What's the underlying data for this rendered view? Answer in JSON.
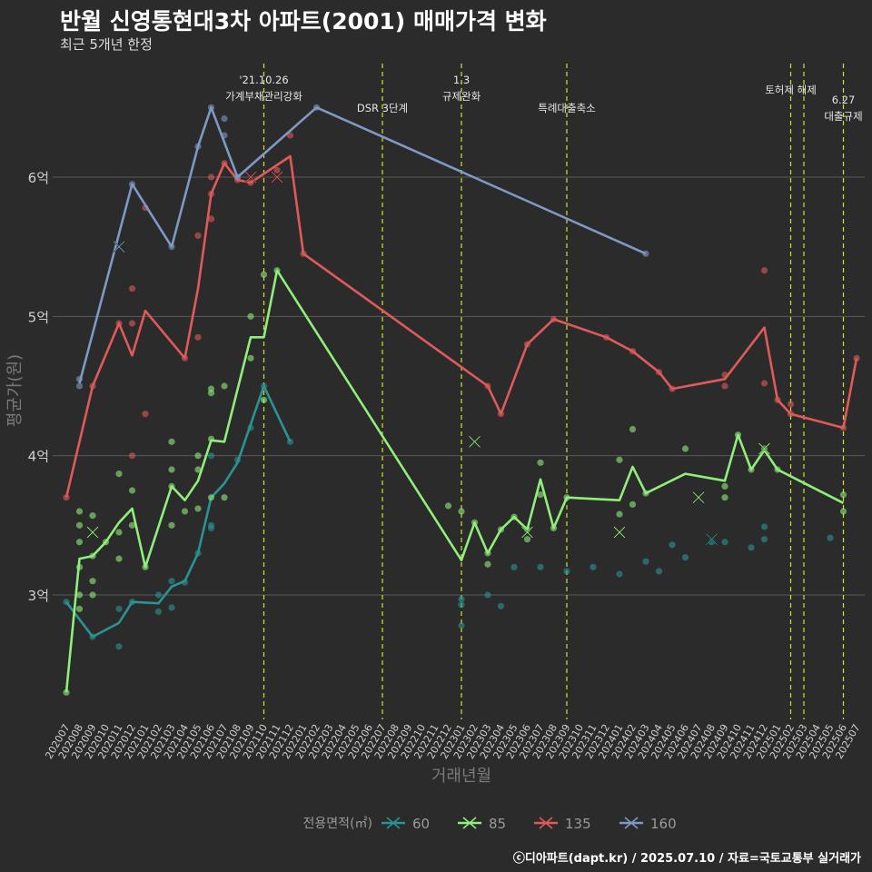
{
  "chart_data": {
    "type": "line",
    "title": "반월 신영통현대3차 아파트(2001) 매매가격 변화",
    "subtitle": "최근 5개년 한정",
    "xlabel": "거래년월",
    "ylabel": "평균가(원)",
    "legend_title": "전용면적(㎡)",
    "legend_position": "bottom",
    "caption": "ⓒ디아파트(dapt.kr) / 2025.07.10 / 자료=국토교통부 실거래가",
    "ylim": [
      2.1,
      7.0
    ],
    "yticks": [
      3,
      4,
      5,
      6
    ],
    "ytick_labels": [
      "3억",
      "4억",
      "5억",
      "6억"
    ],
    "grid": true,
    "categories": [
      "202007",
      "202008",
      "202009",
      "202010",
      "202011",
      "202012",
      "202101",
      "202102",
      "202103",
      "202104",
      "202105",
      "202106",
      "202107",
      "202108",
      "202109",
      "202110",
      "202111",
      "202112",
      "202201",
      "202202",
      "202203",
      "202204",
      "202205",
      "202206",
      "202207",
      "202208",
      "202209",
      "202210",
      "202211",
      "202212",
      "202301",
      "202302",
      "202303",
      "202304",
      "202305",
      "202306",
      "202307",
      "202308",
      "202309",
      "202310",
      "202311",
      "202312",
      "202401",
      "202402",
      "202403",
      "202404",
      "202405",
      "202406",
      "202407",
      "202408",
      "202409",
      "202410",
      "202411",
      "202412",
      "202501",
      "202502",
      "202503",
      "202504",
      "202505",
      "202506",
      "202507"
    ],
    "events": [
      {
        "x": "202110",
        "label": "'21.10.26\n가계부채관리강화"
      },
      {
        "x": "202207",
        "label": "DSR 3단계"
      },
      {
        "x": "202301",
        "label": "1.3\n규제완화"
      },
      {
        "x": "202309",
        "label": "특례대출축소"
      },
      {
        "x": "202502",
        "label": "토허제 해제"
      },
      {
        "x": "202503",
        "label": ""
      },
      {
        "x": "202506",
        "label": "6.27\n대출규제"
      }
    ],
    "series": [
      {
        "name": "60",
        "color": "#2a9494",
        "line": [
          [
            "202007",
            2.95
          ],
          [
            "202009",
            2.7
          ],
          [
            "202011",
            2.8
          ],
          [
            "202012",
            2.95
          ],
          [
            "202102",
            2.94
          ],
          [
            "202103",
            3.06
          ],
          [
            "202104",
            3.1
          ],
          [
            "202105",
            3.3
          ],
          [
            "202106",
            3.7
          ],
          [
            "202107",
            3.8
          ],
          [
            "202108",
            3.95
          ],
          [
            "202110",
            4.5
          ],
          [
            "202112",
            4.1
          ]
        ],
        "points": [
          [
            "202007",
            2.95
          ],
          [
            "202009",
            2.7
          ],
          [
            "202011",
            2.9
          ],
          [
            "202011",
            2.63
          ],
          [
            "202012",
            2.95
          ],
          [
            "202102",
            3.0
          ],
          [
            "202102",
            2.88
          ],
          [
            "202103",
            2.91
          ],
          [
            "202103",
            3.1
          ],
          [
            "202104",
            3.09
          ],
          [
            "202105",
            3.3
          ],
          [
            "202106",
            3.5
          ],
          [
            "202106",
            3.48
          ],
          [
            "202106",
            4.0
          ],
          [
            "202108",
            3.97
          ],
          [
            "202109",
            4.2
          ],
          [
            "202110",
            4.5
          ],
          [
            "202112",
            4.1
          ],
          [
            "202301",
            2.97
          ],
          [
            "202301",
            2.93
          ],
          [
            "202301",
            2.78
          ],
          [
            "202303",
            3.0
          ],
          [
            "202304",
            2.92
          ],
          [
            "202305",
            3.2
          ],
          [
            "202307",
            3.2
          ],
          [
            "202309",
            3.17
          ],
          [
            "202311",
            3.2
          ],
          [
            "202401",
            3.15
          ],
          [
            "202403",
            3.24
          ],
          [
            "202404",
            3.17
          ],
          [
            "202405",
            3.36
          ],
          [
            "202406",
            3.27
          ],
          [
            "202408",
            3.38
          ],
          [
            "202409",
            3.38
          ],
          [
            "202411",
            3.34
          ],
          [
            "202412",
            3.49
          ],
          [
            "202412",
            3.4
          ],
          [
            "202505",
            3.41
          ]
        ],
        "crosses": [
          [
            "202408",
            3.4
          ]
        ]
      },
      {
        "name": "85",
        "color": "#90ee7a",
        "line": [
          [
            "202007",
            2.3
          ],
          [
            "202008",
            3.26
          ],
          [
            "202009",
            3.28
          ],
          [
            "202010",
            3.38
          ],
          [
            "202011",
            3.52
          ],
          [
            "202012",
            3.62
          ],
          [
            "202101",
            3.2
          ],
          [
            "202103",
            3.78
          ],
          [
            "202104",
            3.68
          ],
          [
            "202105",
            3.82
          ],
          [
            "202106",
            4.11
          ],
          [
            "202107",
            4.1
          ],
          [
            "202109",
            4.85
          ],
          [
            "202110",
            4.85
          ],
          [
            "202111",
            5.33
          ],
          [
            "202301",
            3.25
          ],
          [
            "202302",
            3.52
          ],
          [
            "202303",
            3.3
          ],
          [
            "202304",
            3.47
          ],
          [
            "202305",
            3.56
          ],
          [
            "202306",
            3.47
          ],
          [
            "202307",
            3.83
          ],
          [
            "202308",
            3.48
          ],
          [
            "202309",
            3.7
          ],
          [
            "202401",
            3.68
          ],
          [
            "202402",
            3.92
          ],
          [
            "202403",
            3.73
          ],
          [
            "202406",
            3.87
          ],
          [
            "202409",
            3.82
          ],
          [
            "202410",
            4.15
          ],
          [
            "202411",
            3.9
          ],
          [
            "202412",
            4.04
          ],
          [
            "202501",
            3.9
          ],
          [
            "202506",
            3.66
          ]
        ],
        "points": [
          [
            "202007",
            2.3
          ],
          [
            "202008",
            3.6
          ],
          [
            "202008",
            3.5
          ],
          [
            "202008",
            3.38
          ],
          [
            "202008",
            3.2
          ],
          [
            "202008",
            3.0
          ],
          [
            "202008",
            2.9
          ],
          [
            "202009",
            3.57
          ],
          [
            "202009",
            3.28
          ],
          [
            "202009",
            3.1
          ],
          [
            "202009",
            3.0
          ],
          [
            "202010",
            3.38
          ],
          [
            "202011",
            3.87
          ],
          [
            "202011",
            3.45
          ],
          [
            "202011",
            3.26
          ],
          [
            "202012",
            3.75
          ],
          [
            "202012",
            3.5
          ],
          [
            "202101",
            3.2
          ],
          [
            "202103",
            4.1
          ],
          [
            "202103",
            3.9
          ],
          [
            "202103",
            3.78
          ],
          [
            "202103",
            3.5
          ],
          [
            "202104",
            3.6
          ],
          [
            "202105",
            4.0
          ],
          [
            "202105",
            3.9
          ],
          [
            "202105",
            3.62
          ],
          [
            "202106",
            4.48
          ],
          [
            "202106",
            4.45
          ],
          [
            "202106",
            4.12
          ],
          [
            "202106",
            3.7
          ],
          [
            "202107",
            4.5
          ],
          [
            "202107",
            3.7
          ],
          [
            "202109",
            5.0
          ],
          [
            "202109",
            4.7
          ],
          [
            "202110",
            5.3
          ],
          [
            "202110",
            4.4
          ],
          [
            "202111",
            5.33
          ],
          [
            "202212",
            3.64
          ],
          [
            "202301",
            3.6
          ],
          [
            "202302",
            3.52
          ],
          [
            "202303",
            3.3
          ],
          [
            "202303",
            3.22
          ],
          [
            "202304",
            3.47
          ],
          [
            "202305",
            3.56
          ],
          [
            "202306",
            3.47
          ],
          [
            "202306",
            3.4
          ],
          [
            "202307",
            3.95
          ],
          [
            "202307",
            3.72
          ],
          [
            "202308",
            3.48
          ],
          [
            "202309",
            3.7
          ],
          [
            "202401",
            3.97
          ],
          [
            "202401",
            3.58
          ],
          [
            "202402",
            4.19
          ],
          [
            "202402",
            3.65
          ],
          [
            "202403",
            3.73
          ],
          [
            "202406",
            4.05
          ],
          [
            "202409",
            3.78
          ],
          [
            "202409",
            3.7
          ],
          [
            "202410",
            4.15
          ],
          [
            "202411",
            3.9
          ],
          [
            "202412",
            4.05
          ],
          [
            "202501",
            3.9
          ],
          [
            "202506",
            3.72
          ],
          [
            "202506",
            3.6
          ]
        ],
        "crosses": [
          [
            "202009",
            3.45
          ],
          [
            "202306",
            3.45
          ],
          [
            "202401",
            3.45
          ],
          [
            "202407",
            3.7
          ],
          [
            "202412",
            4.05
          ],
          [
            "202302",
            4.1
          ]
        ]
      },
      {
        "name": "135",
        "color": "#e05a5a",
        "line": [
          [
            "202007",
            3.7
          ],
          [
            "202009",
            4.5
          ],
          [
            "202011",
            4.95
          ],
          [
            "202012",
            4.72
          ],
          [
            "202101",
            5.04
          ],
          [
            "202104",
            4.7
          ],
          [
            "202105",
            5.2
          ],
          [
            "202106",
            5.88
          ],
          [
            "202107",
            6.1
          ],
          [
            "202108",
            5.98
          ],
          [
            "202109",
            5.96
          ],
          [
            "202112",
            6.15
          ],
          [
            "202201",
            5.45
          ],
          [
            "202303",
            4.5
          ],
          [
            "202304",
            4.3
          ],
          [
            "202306",
            4.8
          ],
          [
            "202308",
            4.98
          ],
          [
            "202312",
            4.85
          ],
          [
            "202402",
            4.75
          ],
          [
            "202404",
            4.6
          ],
          [
            "202405",
            4.48
          ],
          [
            "202409",
            4.55
          ],
          [
            "202412",
            4.92
          ],
          [
            "202501",
            4.4
          ],
          [
            "202502",
            4.3
          ],
          [
            "202506",
            4.2
          ],
          [
            "202507",
            4.7
          ]
        ],
        "points": [
          [
            "202007",
            3.7
          ],
          [
            "202009",
            4.5
          ],
          [
            "202011",
            4.95
          ],
          [
            "202012",
            5.2
          ],
          [
            "202012",
            4.95
          ],
          [
            "202012",
            4.0
          ],
          [
            "202101",
            5.78
          ],
          [
            "202101",
            4.3
          ],
          [
            "202104",
            4.7
          ],
          [
            "202105",
            5.58
          ],
          [
            "202105",
            4.85
          ],
          [
            "202106",
            6.0
          ],
          [
            "202106",
            5.7
          ],
          [
            "202106",
            5.88
          ],
          [
            "202107",
            6.1
          ],
          [
            "202108",
            5.98
          ],
          [
            "202109",
            5.96
          ],
          [
            "202111",
            6.05
          ],
          [
            "202112",
            6.3
          ],
          [
            "202201",
            5.45
          ],
          [
            "202303",
            4.5
          ],
          [
            "202304",
            4.3
          ],
          [
            "202306",
            4.8
          ],
          [
            "202308",
            4.98
          ],
          [
            "202312",
            4.85
          ],
          [
            "202402",
            4.75
          ],
          [
            "202404",
            4.6
          ],
          [
            "202405",
            4.48
          ],
          [
            "202409",
            4.58
          ],
          [
            "202409",
            4.5
          ],
          [
            "202412",
            5.33
          ],
          [
            "202412",
            4.52
          ],
          [
            "202501",
            4.4
          ],
          [
            "202502",
            4.37
          ],
          [
            "202502",
            4.3
          ],
          [
            "202506",
            4.2
          ],
          [
            "202507",
            4.7
          ]
        ],
        "crosses": [
          [
            "202109",
            6.0
          ],
          [
            "202111",
            6.0
          ]
        ]
      },
      {
        "name": "160",
        "color": "#7e99c3",
        "line": [
          [
            "202008",
            4.52
          ],
          [
            "202012",
            5.95
          ],
          [
            "202103",
            5.5
          ],
          [
            "202105",
            6.22
          ],
          [
            "202106",
            6.5
          ],
          [
            "202108",
            6.0
          ],
          [
            "202202",
            6.5
          ],
          [
            "202403",
            5.45
          ]
        ],
        "points": [
          [
            "202008",
            4.55
          ],
          [
            "202008",
            4.5
          ],
          [
            "202012",
            5.95
          ],
          [
            "202103",
            5.5
          ],
          [
            "202105",
            6.22
          ],
          [
            "202106",
            6.5
          ],
          [
            "202107",
            6.42
          ],
          [
            "202107",
            6.3
          ],
          [
            "202108",
            6.0
          ],
          [
            "202202",
            6.5
          ],
          [
            "202403",
            5.45
          ]
        ],
        "crosses": [
          [
            "202011",
            5.5
          ]
        ]
      }
    ]
  }
}
